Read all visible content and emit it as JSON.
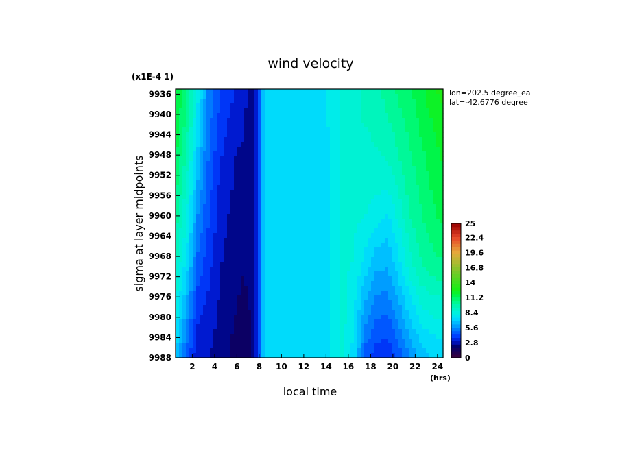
{
  "chart_data": {
    "type": "heatmap",
    "title": "wind velocity",
    "xlabel": "local time",
    "ylabel": "sigma at layer midpoints",
    "x_unit": "(hrs)",
    "y_scale_label": "(x1E-4 1)",
    "annotation": {
      "line1": "lon=202.5 degree_ea",
      "line2": "lat=-42.6776 degree"
    },
    "xlim": [
      0.5,
      24.5
    ],
    "ylim": [
      9988,
      9935
    ],
    "x_ticks": [
      2,
      4,
      6,
      8,
      10,
      12,
      14,
      16,
      18,
      20,
      22,
      24
    ],
    "y_ticks": [
      9936,
      9940,
      9944,
      9948,
      9952,
      9956,
      9960,
      9964,
      9968,
      9972,
      9976,
      9980,
      9984,
      9988
    ],
    "x": [
      0.5,
      1.5,
      2.5,
      3.5,
      4.5,
      5.5,
      6.5,
      7.5,
      8.5,
      9.5,
      10.5,
      11.5,
      12.5,
      13.5,
      14.5,
      15.5,
      16.5,
      17.5,
      18.5,
      19.5,
      20.5,
      21.5,
      22.5,
      23.5,
      24.5
    ],
    "y": [
      9936,
      9940,
      9944,
      9948,
      9952,
      9956,
      9960,
      9964,
      9968,
      9972,
      9976,
      9980,
      9984,
      9988
    ],
    "z": [
      [
        12.0,
        10.6,
        7.8,
        5.4,
        4.2,
        3.6,
        3.2,
        2.2,
        7.2,
        7.0,
        7.0,
        7.0,
        7.0,
        7.6,
        7.8,
        8.6,
        9.0,
        9.2,
        9.6,
        10.0,
        10.6,
        11.0,
        11.6,
        12.4,
        12.8
      ],
      [
        11.8,
        10.4,
        7.6,
        5.2,
        4.0,
        3.4,
        3.0,
        2.2,
        7.2,
        7.0,
        7.0,
        7.0,
        7.0,
        7.6,
        7.8,
        8.6,
        9.0,
        9.2,
        9.4,
        9.8,
        10.4,
        10.8,
        11.4,
        12.0,
        12.4
      ],
      [
        11.6,
        10.0,
        7.2,
        5.0,
        3.8,
        3.2,
        2.9,
        2.2,
        7.2,
        7.0,
        7.0,
        7.0,
        7.0,
        7.4,
        7.8,
        8.6,
        9.0,
        9.0,
        9.2,
        9.4,
        10.0,
        10.6,
        11.2,
        11.8,
        12.2
      ],
      [
        11.4,
        9.6,
        6.8,
        4.8,
        3.6,
        3.0,
        2.5,
        2.2,
        7.2,
        7.0,
        7.0,
        7.0,
        7.0,
        7.4,
        7.8,
        8.6,
        8.8,
        9.0,
        9.0,
        9.2,
        9.8,
        10.4,
        11.0,
        11.6,
        12.0
      ],
      [
        11.0,
        9.2,
        6.4,
        4.6,
        3.4,
        2.9,
        2.4,
        2.2,
        7.2,
        7.0,
        7.0,
        7.0,
        7.0,
        7.4,
        7.8,
        8.6,
        8.8,
        8.8,
        8.8,
        8.8,
        9.4,
        10.2,
        10.8,
        11.4,
        11.8
      ],
      [
        10.6,
        8.8,
        6.0,
        4.4,
        3.2,
        2.8,
        2.3,
        2.2,
        7.2,
        7.0,
        7.0,
        7.0,
        7.0,
        7.4,
        7.8,
        8.6,
        8.6,
        8.6,
        8.4,
        8.2,
        9.0,
        10.0,
        10.6,
        11.2,
        11.6
      ],
      [
        10.2,
        8.4,
        5.6,
        4.2,
        3.1,
        2.7,
        2.3,
        2.2,
        7.2,
        7.0,
        7.0,
        7.0,
        7.0,
        7.4,
        7.8,
        8.6,
        8.6,
        8.4,
        8.0,
        7.6,
        8.6,
        9.8,
        10.4,
        11.0,
        11.4
      ],
      [
        9.8,
        8.0,
        5.2,
        4.0,
        3.0,
        2.6,
        2.2,
        2.2,
        7.2,
        7.0,
        7.0,
        7.0,
        7.0,
        7.4,
        7.8,
        8.6,
        8.4,
        8.0,
        7.4,
        7.0,
        8.0,
        9.4,
        10.2,
        10.6,
        11.0
      ],
      [
        9.4,
        7.6,
        4.8,
        3.8,
        2.9,
        2.5,
        2.2,
        2.2,
        7.2,
        7.0,
        7.0,
        7.0,
        7.0,
        7.4,
        7.8,
        8.6,
        8.4,
        7.6,
        6.8,
        6.6,
        7.6,
        9.0,
        9.8,
        10.4,
        10.6
      ],
      [
        9.0,
        7.0,
        4.4,
        3.6,
        2.8,
        2.4,
        2.1,
        2.2,
        7.2,
        7.0,
        7.0,
        7.0,
        7.0,
        7.4,
        7.8,
        8.6,
        8.2,
        7.0,
        6.2,
        6.0,
        7.0,
        8.4,
        9.4,
        9.8,
        10.0
      ],
      [
        8.6,
        6.4,
        4.0,
        3.4,
        2.7,
        2.3,
        2.0,
        2.2,
        7.2,
        7.0,
        7.0,
        7.0,
        7.0,
        7.4,
        7.8,
        8.6,
        8.0,
        6.4,
        5.6,
        5.4,
        6.4,
        7.6,
        8.6,
        9.0,
        9.2
      ],
      [
        8.2,
        5.8,
        3.6,
        3.2,
        2.6,
        2.2,
        1.9,
        2.2,
        7.2,
        7.0,
        7.0,
        7.0,
        7.0,
        7.4,
        7.8,
        8.6,
        7.8,
        5.8,
        5.0,
        4.8,
        5.8,
        7.0,
        8.0,
        8.4,
        8.6
      ],
      [
        7.6,
        5.2,
        3.2,
        3.0,
        2.5,
        2.1,
        1.8,
        2.2,
        7.2,
        7.0,
        7.0,
        7.0,
        7.0,
        7.4,
        7.8,
        8.6,
        7.6,
        5.2,
        4.4,
        4.2,
        5.0,
        6.2,
        7.2,
        7.6,
        7.8
      ],
      [
        7.0,
        4.6,
        2.8,
        2.8,
        2.4,
        2.0,
        1.6,
        2.2,
        7.2,
        7.0,
        7.0,
        7.0,
        7.0,
        7.4,
        7.8,
        8.6,
        7.4,
        4.6,
        3.8,
        3.6,
        4.4,
        5.6,
        6.6,
        7.0,
        7.2
      ]
    ],
    "colorbar": {
      "range": [
        0,
        25
      ],
      "tick_labels": [
        "25",
        "22.4",
        "19.6",
        "16.8",
        "14",
        "11.2",
        "8.4",
        "5.6",
        "2.8",
        "0"
      ]
    }
  }
}
